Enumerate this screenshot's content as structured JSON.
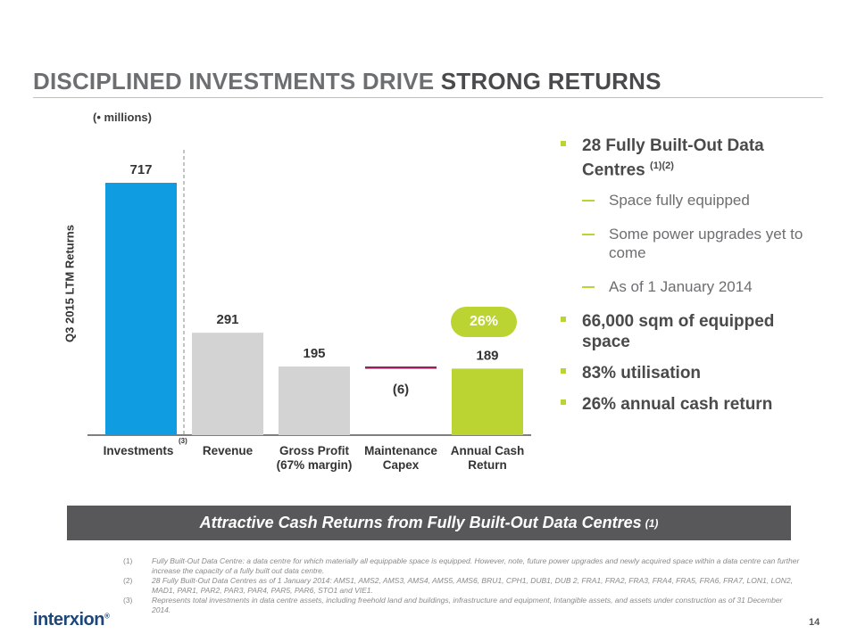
{
  "slide": {
    "title_part1": "DISCIPLINED INVESTMENTS DRIVE",
    "title_part2": "STRONG RETURNS",
    "page_number": "14"
  },
  "chart_data": {
    "type": "bar",
    "units_label": "(• millions)",
    "ylabel": "Q3 2015 LTM  Returns",
    "categories": [
      "Investments",
      "Revenue",
      "Gross Profit\n(67% margin)",
      "Maintenance\nCapex",
      "Annual Cash\nReturn"
    ],
    "values": [
      717,
      291,
      195,
      -6,
      189
    ],
    "value_labels": [
      "717",
      "291",
      "195",
      "(6)",
      "189"
    ],
    "category_note": "(3)",
    "return_badge": "26%",
    "colors": [
      "#0f9ce0",
      "#d3d3d3",
      "#d3d3d3",
      "#9a1a5e",
      "#bcd432"
    ],
    "ylim": [
      0,
      717
    ],
    "grid": false,
    "legend": "none"
  },
  "bullets": [
    {
      "level": 1,
      "text": "28 Fully Built-Out Data Centres",
      "sup": "(1)(2)"
    },
    {
      "level": 2,
      "text": "Space fully equipped"
    },
    {
      "level": 2,
      "text": "Some power upgrades yet to come"
    },
    {
      "level": 2,
      "text": "As of 1 January 2014"
    },
    {
      "level": 1,
      "text": "66,000 sqm of equipped space"
    },
    {
      "level": 1,
      "text": "83% utilisation"
    },
    {
      "level": 1,
      "text": "26% annual cash return"
    }
  ],
  "banner": {
    "text": "Attractive Cash Returns from Fully Built-Out Data Centres",
    "sup": "(1)"
  },
  "footnotes": [
    {
      "num": "(1)",
      "text": "Fully Built-Out Data Centre: a data centre for which materially all equippable space is equipped. However, note, future power upgrades and newly acquired space within a data centre can further increase the capacity of a fully built out data centre."
    },
    {
      "num": "(2)",
      "text": "28 Fully Built-Out Data Centres as of 1 January 2014: AMS1, AMS2, AMS3, AMS4, AMS5, AMS6, BRU1, CPH1, DUB1, DUB 2, FRA1, FRA2, FRA3, FRA4, FRA5, FRA6, FRA7, LON1, LON2, MAD1, PAR1, PAR2, PAR3, PAR4, PAR5, PAR6, STO1 and VIE1."
    },
    {
      "num": "(3)",
      "text": "Represents total investments in data centre assets, including freehold land and buildings, infrastructure and equipment, Intangible assets, and assets under construction as of 31 December 2014."
    }
  ],
  "logo": {
    "text": "interxion",
    "tm": "®"
  },
  "colors": {
    "accent": "#bcd432",
    "brand": "#1d4778",
    "banner_bg": "#58585a"
  }
}
